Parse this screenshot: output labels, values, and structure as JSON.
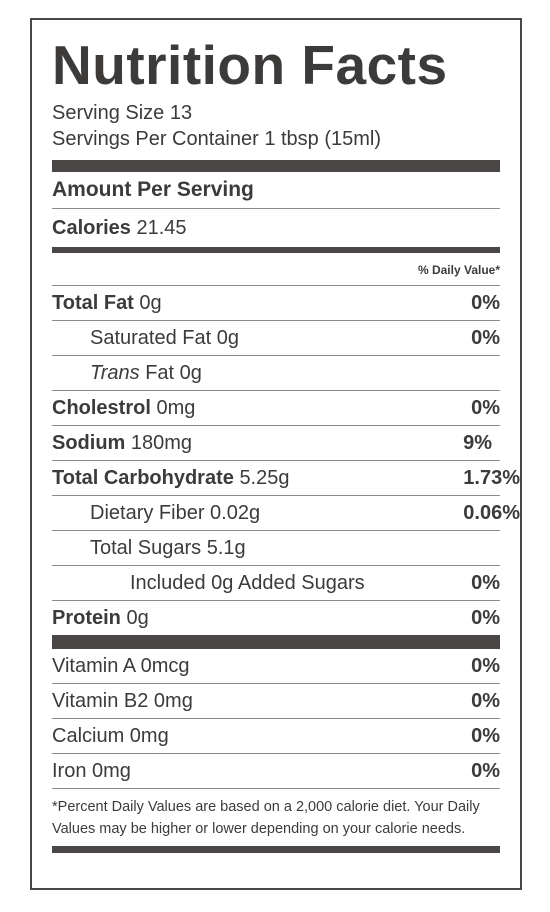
{
  "title": "Nutrition Facts",
  "serving_size": "Serving Size 13",
  "servings_per_container": "Servings Per Container 1 tbsp (15ml)",
  "amount_per_serving": "Amount Per Serving",
  "calories": {
    "label": "Calories",
    "value": "21.45"
  },
  "daily_value_header": "% Daily Value*",
  "nutrients": {
    "total_fat": {
      "label": "Total Fat",
      "amount": "0g",
      "dv": "0%"
    },
    "saturated_fat": {
      "label": "Saturated Fat 0g",
      "dv": "0%"
    },
    "trans_fat": {
      "label_italic": "Trans",
      "label_rest": "Fat 0g"
    },
    "cholesterol": {
      "label": "Cholestrol",
      "amount": "0mg",
      "dv": "0%"
    },
    "sodium": {
      "label": "Sodium",
      "amount": "180mg",
      "dv": "9%"
    },
    "total_carbohydrate": {
      "label": "Total Carbohydrate",
      "amount": "5.25g",
      "dv": "1.73%"
    },
    "dietary_fiber": {
      "label": "Dietary Fiber 0.02g",
      "dv": "0.06%"
    },
    "total_sugars": {
      "label": "Total Sugars 5.1g"
    },
    "added_sugars": {
      "label": "Included 0g Added Sugars",
      "dv": "0%"
    },
    "protein": {
      "label": "Protein",
      "amount": "0g",
      "dv": "0%"
    }
  },
  "vitamins": [
    {
      "label": "Vitamin A 0mcg",
      "dv": "0%"
    },
    {
      "label": "Vitamin B2 0mg",
      "dv": "0%"
    },
    {
      "label": "Calcium 0mg",
      "dv": "0%"
    },
    {
      "label": "Iron 0mg",
      "dv": "0%"
    }
  ],
  "footnote": "*Percent Daily Values are based on a 2,000 calorie diet. Your Daily Values may be higher or lower depending on your calorie needs.",
  "colors": {
    "text": "#3d3b3a",
    "bars": "#4a4746",
    "rules": "#8d8b8a"
  }
}
